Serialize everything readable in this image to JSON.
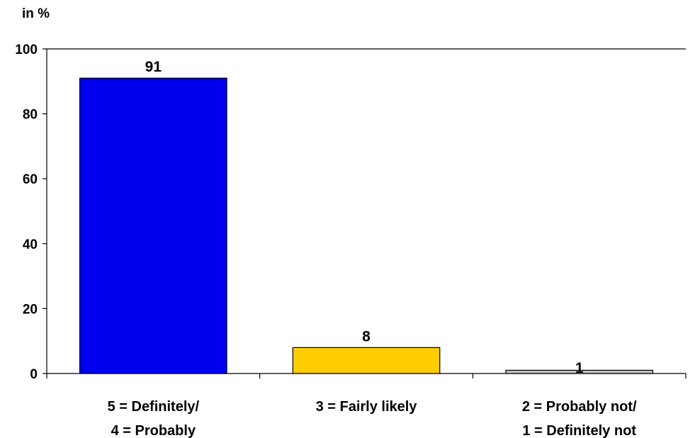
{
  "chart_data": {
    "type": "bar",
    "unit_label": "in %",
    "categories": [
      [
        "5 = Definitely/",
        "4 = Probably"
      ],
      [
        "3 = Fairly likely"
      ],
      [
        "2 = Probably not/",
        "1 = Definitely not"
      ]
    ],
    "values": [
      91,
      8,
      1
    ],
    "colors": [
      "#0000ee",
      "#ffcc00",
      "#c0c0c0"
    ],
    "ylim": [
      0,
      100
    ],
    "yticks": [
      0,
      20,
      40,
      60,
      80,
      100
    ],
    "grid": false,
    "legend": "none"
  }
}
